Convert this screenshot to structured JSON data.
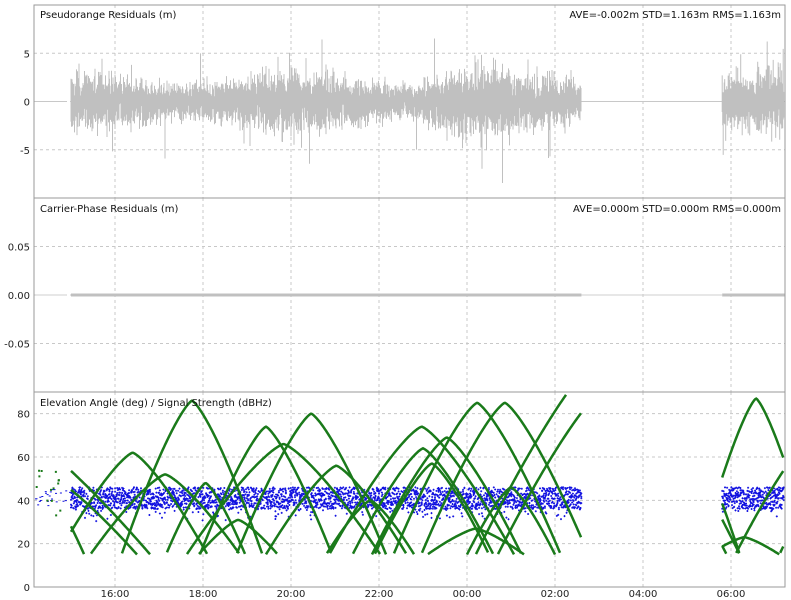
{
  "chart_data": [
    {
      "type": "line",
      "title": "Pseudorange Residuals (m)",
      "stats": "AVE=-0.002m STD=1.163m RMS=1.163m",
      "ylim": [
        -10,
        10
      ],
      "yticks": [
        {
          "v": 5,
          "label": "5"
        },
        {
          "v": 0,
          "label": "0"
        },
        {
          "v": -5,
          "label": "-5"
        }
      ],
      "series": [
        {
          "name": "pseudorange residual",
          "color": "#c0c0c0",
          "mean": -0.002,
          "std": 1.163,
          "segments": [
            [
              1.0,
              12.6
            ],
            [
              15.8,
              17.25
            ]
          ],
          "flat_segments": [
            [
              0.2,
              0.9
            ],
            [
              12.6,
              15.8
            ]
          ]
        }
      ]
    },
    {
      "type": "line",
      "title": "Carrier-Phase Residuals (m)",
      "stats": "AVE=0.000m STD=0.000m RMS=0.000m",
      "ylim": [
        -0.1,
        0.1
      ],
      "yticks": [
        {
          "v": 0.05,
          "label": "0.05"
        },
        {
          "v": 0,
          "label": "0.00"
        },
        {
          "v": -0.05,
          "label": "-0.05"
        }
      ],
      "series": [
        {
          "name": "carrier-phase residual",
          "color": "#c0c0c0",
          "value": 0.0,
          "segments": [
            [
              1.0,
              12.6
            ],
            [
              15.8,
              17.25
            ]
          ],
          "thin_segments": [
            [
              0.2,
              0.9
            ],
            [
              12.6,
              15.8
            ]
          ]
        }
      ]
    },
    {
      "type": "scatter",
      "title": "Elevation Angle (deg) / Signal Strength (dBHz)",
      "ylim": [
        0,
        90
      ],
      "yticks": [
        {
          "v": 80,
          "label": "80"
        },
        {
          "v": 60,
          "label": "60"
        },
        {
          "v": 40,
          "label": "40"
        },
        {
          "v": 20,
          "label": "20"
        },
        {
          "v": 0,
          "label": "0"
        }
      ],
      "elevation_color": "#1a7a1a",
      "snr_color": "#1010e0",
      "elevation_arcs_tpeak_h_epeak_deg_halfwidth_h": [
        [
          -0.3,
          70,
          1.6
        ],
        [
          0.2,
          55,
          2.3
        ],
        [
          -0.8,
          80,
          3.6
        ],
        [
          3.75,
          86,
          1.6
        ],
        [
          5.43,
          74,
          1.5
        ],
        [
          6.46,
          80,
          1.7
        ],
        [
          5.83,
          66,
          2.2
        ],
        [
          3.14,
          52,
          1.7
        ],
        [
          4.06,
          48,
          0.9
        ],
        [
          4.8,
          31,
          0.9
        ],
        [
          7.03,
          56,
          1.6
        ],
        [
          8.97,
          74,
          2.1
        ],
        [
          9.0,
          64,
          1.6
        ],
        [
          9.2,
          57,
          1.3
        ],
        [
          9.54,
          69,
          1.7
        ],
        [
          10.23,
          85,
          1.9
        ],
        [
          10.86,
          85,
          1.9
        ],
        [
          10.2,
          27,
          1.1
        ],
        [
          13.3,
          95,
          2.6
        ],
        [
          11.0,
          46,
          1.0
        ],
        [
          2.4,
          62,
          1.7
        ],
        [
          7.8,
          40,
          1.0
        ],
        [
          14.5,
          95,
          1.7
        ],
        [
          16.57,
          87,
          1.3
        ],
        [
          16.3,
          23,
          0.8
        ],
        [
          17.9,
          70,
          1.8
        ],
        [
          13.2,
          110,
          3.0
        ],
        [
          18.0,
          45,
          0.9
        ]
      ],
      "snr_band_dbhz": {
        "mean": 41,
        "min": 30,
        "max": 47
      }
    }
  ],
  "xaxis": {
    "origin_label": "14:00",
    "xlim_hours_from_origin": [
      0.16,
      17.25
    ],
    "ticks": [
      {
        "h": 2,
        "label": "16:00"
      },
      {
        "h": 4,
        "label": "18:00"
      },
      {
        "h": 6,
        "label": "20:00"
      },
      {
        "h": 8,
        "label": "22:00"
      },
      {
        "h": 10,
        "label": "00:00"
      },
      {
        "h": 12,
        "label": "02:00"
      },
      {
        "h": 14,
        "label": "04:00"
      },
      {
        "h": 16,
        "label": "06:00"
      }
    ]
  }
}
